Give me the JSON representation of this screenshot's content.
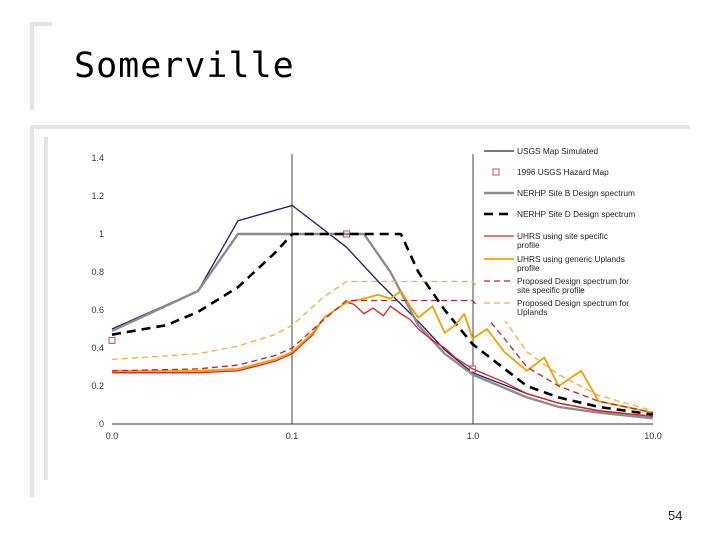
{
  "slide": {
    "title": "Somerville",
    "page_number": "54"
  },
  "colors": {
    "usgs_map": "#1c1c6e",
    "hazard_map": "#c0504d",
    "site_b": "#8c8c8c",
    "site_d": "#000000",
    "uhrs_site": "#e3201b",
    "uhrs_uplands": "#f0a000",
    "proposed_site": "#c0202a",
    "proposed_uplands": "#f0b040",
    "grid": "#444444"
  },
  "chart_data": {
    "type": "line",
    "x_axis": {
      "scale": "log-like",
      "tick_labels": [
        "0.0",
        "0.1",
        "1.0",
        "10.0"
      ]
    },
    "y_axis": {
      "ylim": [
        0,
        1.4
      ],
      "tick_labels": [
        "0",
        "0.2",
        "0.4",
        "0.6",
        "0.8",
        "1",
        "1.2",
        "1.4"
      ]
    },
    "vertical_gridlines_at": [
      "0.1",
      "1.0"
    ],
    "legend_position": "top-right",
    "series": [
      {
        "name": "USGS Map Simulated",
        "style": "solid",
        "x": [
          0.01,
          0.03,
          0.05,
          0.1,
          0.2,
          0.3,
          0.5,
          0.7,
          1.0,
          2.0,
          3.0,
          5.0,
          10.0
        ],
        "y": [
          0.5,
          0.7,
          1.07,
          1.15,
          0.93,
          0.75,
          0.54,
          0.39,
          0.27,
          0.16,
          0.11,
          0.07,
          0.04
        ]
      },
      {
        "name": "1996 USGS Hazard Map",
        "style": "markers",
        "x": [
          0.01,
          0.2,
          1.0
        ],
        "y": [
          0.44,
          1.0,
          0.29
        ]
      },
      {
        "name": "NERHP Site B Design spectrum",
        "style": "solid",
        "x": [
          0.01,
          0.03,
          0.05,
          0.2,
          0.25,
          0.35,
          0.5,
          0.7,
          1.0,
          2.0,
          3.0,
          5.0,
          10.0
        ],
        "y": [
          0.49,
          0.7,
          1.0,
          1.0,
          1.0,
          0.8,
          0.52,
          0.37,
          0.26,
          0.14,
          0.09,
          0.06,
          0.03
        ]
      },
      {
        "name": "NERHP Site D Design spectrum",
        "style": "dashed",
        "x": [
          0.01,
          0.02,
          0.03,
          0.05,
          0.08,
          0.1,
          0.2,
          0.3,
          0.4,
          0.5,
          0.7,
          1.0,
          2.0,
          3.0,
          5.0,
          10.0
        ],
        "y": [
          0.47,
          0.52,
          0.59,
          0.72,
          0.9,
          1.0,
          1.0,
          1.0,
          1.0,
          0.8,
          0.6,
          0.42,
          0.2,
          0.14,
          0.09,
          0.05
        ]
      },
      {
        "name": "UHRS using site specific profile",
        "style": "solid",
        "x": [
          0.01,
          0.03,
          0.05,
          0.08,
          0.1,
          0.13,
          0.15,
          0.2,
          0.22,
          0.25,
          0.28,
          0.32,
          0.35,
          0.4,
          0.45,
          0.5,
          0.6,
          0.7,
          0.8,
          1.0,
          1.5,
          2.0,
          3.0,
          5.0,
          10.0
        ],
        "y": [
          0.27,
          0.27,
          0.28,
          0.33,
          0.37,
          0.47,
          0.56,
          0.64,
          0.63,
          0.58,
          0.61,
          0.57,
          0.62,
          0.58,
          0.55,
          0.5,
          0.44,
          0.4,
          0.35,
          0.29,
          0.22,
          0.16,
          0.11,
          0.07,
          0.04
        ]
      },
      {
        "name": "UHRS using generic Uplands profile",
        "style": "solid",
        "x": [
          0.01,
          0.03,
          0.05,
          0.08,
          0.1,
          0.13,
          0.15,
          0.2,
          0.25,
          0.3,
          0.35,
          0.4,
          0.45,
          0.5,
          0.6,
          0.7,
          0.8,
          0.9,
          1.0,
          1.2,
          1.5,
          2.0,
          2.5,
          3.0,
          4.0,
          5.0,
          10.0
        ],
        "y": [
          0.28,
          0.28,
          0.29,
          0.34,
          0.38,
          0.48,
          0.56,
          0.64,
          0.66,
          0.68,
          0.66,
          0.7,
          0.62,
          0.56,
          0.62,
          0.48,
          0.52,
          0.58,
          0.45,
          0.5,
          0.38,
          0.28,
          0.35,
          0.2,
          0.28,
          0.12,
          0.06
        ]
      },
      {
        "name": "Proposed Design spectrum for site specific profile",
        "style": "dashed",
        "x": [
          0.01,
          0.03,
          0.05,
          0.08,
          0.1,
          0.15,
          0.2,
          0.3,
          0.5,
          0.7,
          1.0,
          1.5,
          2.0,
          3.0,
          5.0,
          10.0
        ],
        "y": [
          0.28,
          0.29,
          0.31,
          0.36,
          0.4,
          0.55,
          0.65,
          0.65,
          0.65,
          0.65,
          0.65,
          0.45,
          0.3,
          0.2,
          0.12,
          0.06
        ]
      },
      {
        "name": "Proposed Design spectrum for Uplands",
        "style": "dashed",
        "x": [
          0.01,
          0.03,
          0.05,
          0.08,
          0.1,
          0.15,
          0.2,
          0.3,
          0.5,
          0.7,
          1.0,
          1.5,
          2.0,
          3.0,
          5.0,
          10.0
        ],
        "y": [
          0.34,
          0.37,
          0.41,
          0.47,
          0.52,
          0.67,
          0.75,
          0.75,
          0.75,
          0.75,
          0.75,
          0.55,
          0.38,
          0.26,
          0.15,
          0.07
        ]
      }
    ]
  }
}
